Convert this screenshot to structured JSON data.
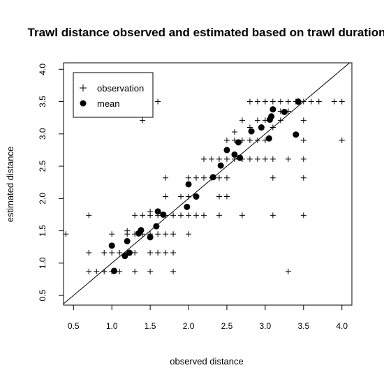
{
  "chart_data": {
    "type": "scatter",
    "title": "Trawl distance observed and estimated based on trawl duration",
    "xlabel": "observed distance",
    "ylabel": "estimated distance",
    "xlim": [
      0.37,
      4.13
    ],
    "ylim": [
      0.35,
      4.1
    ],
    "x_ticks": [
      0.5,
      1.0,
      1.5,
      2.0,
      2.5,
      3.0,
      3.5,
      4.0
    ],
    "x_tick_labels": [
      "0.5",
      "1.0",
      "1.5",
      "2.0",
      "2.5",
      "3.0",
      "3.5",
      "4.0"
    ],
    "y_ticks": [
      0.5,
      1.0,
      1.5,
      2.0,
      2.5,
      3.0,
      3.5,
      4.0
    ],
    "y_tick_labels": [
      "0.5",
      "1.0",
      "1.5",
      "2.0",
      "2.5",
      "3.0",
      "3.5",
      "4.0"
    ],
    "reference_line": "y = x",
    "legend": {
      "position": "top-left",
      "entries": [
        {
          "label": "observation",
          "marker": "plus"
        },
        {
          "label": "mean",
          "marker": "filled-circle"
        }
      ]
    },
    "series": [
      {
        "name": "observation",
        "marker": "plus",
        "points": [
          [
            0.4,
            1.45
          ],
          [
            0.7,
            0.87
          ],
          [
            0.7,
            1.16
          ],
          [
            0.7,
            1.74
          ],
          [
            0.8,
            0.87
          ],
          [
            0.9,
            0.87
          ],
          [
            0.9,
            1.16
          ],
          [
            1.0,
            0.87
          ],
          [
            1.0,
            1.16
          ],
          [
            1.0,
            1.45
          ],
          [
            1.1,
            0.87
          ],
          [
            1.1,
            1.16
          ],
          [
            1.2,
            1.16
          ],
          [
            1.2,
            1.45
          ],
          [
            1.2,
            1.5
          ],
          [
            1.3,
            0.87
          ],
          [
            1.3,
            1.16
          ],
          [
            1.3,
            1.45
          ],
          [
            1.3,
            1.74
          ],
          [
            1.4,
            1.45
          ],
          [
            1.4,
            1.74
          ],
          [
            1.4,
            3.21
          ],
          [
            1.5,
            0.87
          ],
          [
            1.5,
            1.16
          ],
          [
            1.5,
            1.45
          ],
          [
            1.5,
            1.74
          ],
          [
            1.5,
            1.8
          ],
          [
            1.6,
            1.16
          ],
          [
            1.6,
            1.45
          ],
          [
            1.6,
            1.74
          ],
          [
            1.6,
            3.5
          ],
          [
            1.7,
            1.16
          ],
          [
            1.7,
            1.45
          ],
          [
            1.7,
            1.74
          ],
          [
            1.7,
            2.03
          ],
          [
            1.7,
            2.32
          ],
          [
            1.8,
            0.87
          ],
          [
            1.8,
            1.16
          ],
          [
            1.8,
            1.45
          ],
          [
            1.8,
            1.74
          ],
          [
            1.9,
            1.74
          ],
          [
            1.9,
            2.03
          ],
          [
            2.0,
            1.45
          ],
          [
            2.0,
            1.74
          ],
          [
            2.0,
            2.03
          ],
          [
            2.0,
            2.32
          ],
          [
            2.1,
            1.74
          ],
          [
            2.1,
            2.32
          ],
          [
            2.2,
            1.74
          ],
          [
            2.2,
            2.32
          ],
          [
            2.2,
            2.61
          ],
          [
            2.3,
            2.32
          ],
          [
            2.3,
            2.61
          ],
          [
            2.4,
            1.74
          ],
          [
            2.4,
            2.03
          ],
          [
            2.4,
            2.32
          ],
          [
            2.4,
            2.61
          ],
          [
            2.5,
            2.03
          ],
          [
            2.5,
            2.32
          ],
          [
            2.5,
            2.61
          ],
          [
            2.5,
            2.9
          ],
          [
            2.6,
            2.61
          ],
          [
            2.6,
            2.9
          ],
          [
            2.6,
            3.03
          ],
          [
            2.7,
            1.74
          ],
          [
            2.7,
            2.61
          ],
          [
            2.7,
            2.9
          ],
          [
            2.7,
            3.21
          ],
          [
            2.8,
            2.61
          ],
          [
            2.8,
            2.9
          ],
          [
            2.8,
            3.1
          ],
          [
            2.8,
            3.5
          ],
          [
            2.9,
            2.61
          ],
          [
            2.9,
            2.9
          ],
          [
            2.9,
            3.21
          ],
          [
            2.9,
            3.5
          ],
          [
            3.0,
            2.61
          ],
          [
            3.0,
            2.9
          ],
          [
            3.0,
            3.21
          ],
          [
            3.0,
            3.5
          ],
          [
            3.1,
            1.74
          ],
          [
            3.1,
            2.32
          ],
          [
            3.1,
            2.61
          ],
          [
            3.1,
            3.1
          ],
          [
            3.1,
            3.5
          ],
          [
            3.2,
            3.21
          ],
          [
            3.2,
            3.35
          ],
          [
            3.2,
            3.5
          ],
          [
            3.3,
            0.87
          ],
          [
            3.3,
            2.61
          ],
          [
            3.3,
            3.35
          ],
          [
            3.3,
            3.5
          ],
          [
            3.4,
            3.5
          ],
          [
            3.5,
            1.74
          ],
          [
            3.5,
            2.32
          ],
          [
            3.5,
            2.61
          ],
          [
            3.5,
            2.9
          ],
          [
            3.5,
            3.21
          ],
          [
            3.5,
            3.5
          ],
          [
            3.6,
            3.5
          ],
          [
            3.7,
            3.5
          ],
          [
            3.9,
            3.5
          ],
          [
            4.0,
            2.9
          ],
          [
            4.0,
            3.5
          ]
        ]
      },
      {
        "name": "mean",
        "marker": "filled-circle",
        "points": [
          [
            1.0,
            1.27
          ],
          [
            1.03,
            0.88
          ],
          [
            1.17,
            1.11
          ],
          [
            1.2,
            1.34
          ],
          [
            1.23,
            1.16
          ],
          [
            1.35,
            1.46
          ],
          [
            1.38,
            1.51
          ],
          [
            1.5,
            1.4
          ],
          [
            1.58,
            1.57
          ],
          [
            1.6,
            1.8
          ],
          [
            1.67,
            1.75
          ],
          [
            1.98,
            1.87
          ],
          [
            2.0,
            2.22
          ],
          [
            2.1,
            2.03
          ],
          [
            2.32,
            2.33
          ],
          [
            2.42,
            2.51
          ],
          [
            2.5,
            2.75
          ],
          [
            2.6,
            2.68
          ],
          [
            2.65,
            2.87
          ],
          [
            2.67,
            2.63
          ],
          [
            2.82,
            3.04
          ],
          [
            2.95,
            3.1
          ],
          [
            3.05,
            2.93
          ],
          [
            3.06,
            3.22
          ],
          [
            3.08,
            3.27
          ],
          [
            3.1,
            3.38
          ],
          [
            3.25,
            3.34
          ],
          [
            3.4,
            2.99
          ],
          [
            3.43,
            3.5
          ]
        ]
      }
    ]
  }
}
